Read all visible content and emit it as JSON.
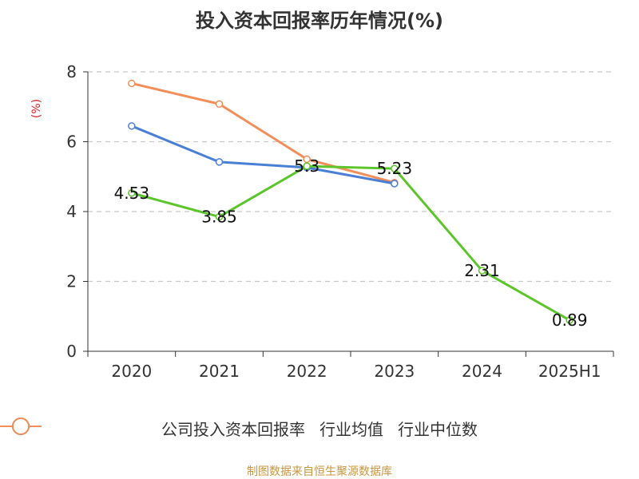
{
  "chart_data": {
    "type": "line",
    "title": "投入资本回报率历年情况(%)",
    "ylabel": "(%)",
    "categories": [
      "2020",
      "2021",
      "2022",
      "2023",
      "2024",
      "2025H1"
    ],
    "yticks": [
      "0",
      "2",
      "4",
      "6",
      "8"
    ],
    "ylim": [
      0,
      8
    ],
    "grid": "dashed horizontal",
    "legend_position": "bottom",
    "series": [
      {
        "name": "公司投入资本回报率",
        "color": "#5cc52a",
        "values": [
          4.53,
          3.85,
          5.3,
          5.23,
          2.31,
          0.89
        ],
        "labels": [
          "4.53",
          "3.85",
          "5.3",
          "5.23",
          "2.31",
          "0.89"
        ]
      },
      {
        "name": "行业均值",
        "color": "#4a7fd6",
        "values": [
          6.45,
          5.42,
          5.26,
          4.8,
          null,
          null
        ]
      },
      {
        "name": "行业中位数",
        "color": "#f28e5a",
        "values": [
          7.67,
          7.08,
          5.5,
          4.83,
          null,
          null
        ]
      }
    ]
  },
  "source_text": "制图数据来自恒生聚源数据库"
}
